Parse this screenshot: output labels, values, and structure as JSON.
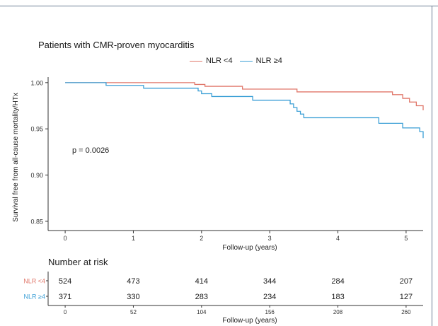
{
  "chart_data": {
    "type": "line",
    "subtype": "kaplan-meier",
    "title": "Patients with CMR-proven myocarditis",
    "xlabel": "Follow-up (years)",
    "ylabel": "Survival free from all-cause mortality/HTx",
    "xlim": [
      -0.25,
      5.25
    ],
    "ylim": [
      0.84,
      1.006
    ],
    "x_ticks": [
      0,
      1,
      2,
      3,
      4,
      5
    ],
    "y_ticks": [
      0.85,
      0.9,
      0.95,
      1.0
    ],
    "y_tick_labels": [
      "0.85",
      "0.90",
      "0.95",
      "1.00"
    ],
    "grid": false,
    "legend_position": "top",
    "annotation": "p = 0.0026",
    "series": [
      {
        "name": "NLR <4",
        "color": "#e0776a",
        "steps": [
          [
            0,
            1.0
          ],
          [
            1.9,
            0.998
          ],
          [
            2.05,
            0.996
          ],
          [
            2.6,
            0.993
          ],
          [
            3.4,
            0.99
          ],
          [
            4.8,
            0.987
          ],
          [
            4.95,
            0.983
          ],
          [
            5.05,
            0.979
          ],
          [
            5.15,
            0.975
          ],
          [
            5.25,
            0.97
          ]
        ]
      },
      {
        "name": "NLR ≥4",
        "color": "#3b9fd6",
        "steps": [
          [
            0,
            1.0
          ],
          [
            0.6,
            0.997
          ],
          [
            1.15,
            0.994
          ],
          [
            1.95,
            0.991
          ],
          [
            2.0,
            0.988
          ],
          [
            2.15,
            0.985
          ],
          [
            2.75,
            0.981
          ],
          [
            3.3,
            0.977
          ],
          [
            3.35,
            0.973
          ],
          [
            3.4,
            0.969
          ],
          [
            3.45,
            0.966
          ],
          [
            3.5,
            0.962
          ],
          [
            4.6,
            0.956
          ],
          [
            4.95,
            0.951
          ],
          [
            5.2,
            0.947
          ],
          [
            5.25,
            0.94
          ]
        ]
      }
    ],
    "risk_table": {
      "title": "Number at risk",
      "xlabel": "Follow-up (years)",
      "ticks": [
        "0",
        "52",
        "104",
        "156",
        "208",
        "260"
      ],
      "rows": [
        {
          "label": "NLR <4",
          "color": "#e0776a",
          "values": [
            "524",
            "473",
            "414",
            "344",
            "284",
            "207"
          ]
        },
        {
          "label": "NLR ≥4",
          "color": "#3b9fd6",
          "values": [
            "371",
            "330",
            "283",
            "234",
            "183",
            "127"
          ]
        }
      ]
    }
  }
}
